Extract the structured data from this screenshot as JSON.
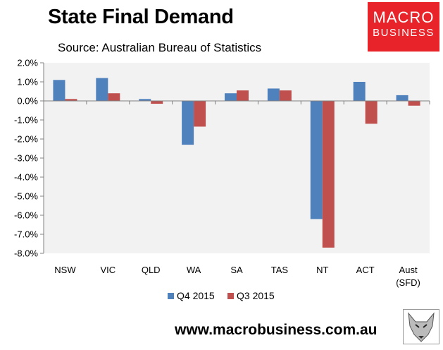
{
  "header": {
    "title": "State Final Demand",
    "subtitle": "Source: Australian Bureau of Statistics"
  },
  "logo": {
    "line1": "MACRO",
    "line2": "BUSINESS"
  },
  "footer": {
    "website": "www.macrobusiness.com.au"
  },
  "colors": {
    "series1": "#4f81bd",
    "series2": "#c0504d",
    "plot_bg": "#f2f2f2",
    "logo_bg": "#e8242a"
  },
  "chart_data": {
    "type": "bar",
    "title": "State Final Demand",
    "categories": [
      "NSW",
      "VIC",
      "QLD",
      "WA",
      "SA",
      "TAS",
      "NT",
      "ACT",
      "Aust\n(SFD)"
    ],
    "series": [
      {
        "name": "Q4 2015",
        "values": [
          1.1,
          1.2,
          0.1,
          -2.3,
          0.4,
          0.65,
          -6.2,
          1.0,
          0.3
        ]
      },
      {
        "name": "Q3 2015",
        "values": [
          0.1,
          0.4,
          -0.15,
          -1.35,
          0.55,
          0.55,
          -7.7,
          -1.2,
          -0.25
        ]
      }
    ],
    "ylim": [
      -8,
      2
    ],
    "yticks": [
      2,
      1,
      0,
      -1,
      -2,
      -3,
      -4,
      -5,
      -6,
      -7,
      -8
    ],
    "ytick_labels": [
      "2.0%",
      "1.0%",
      "0.0%",
      "-1.0%",
      "-2.0%",
      "-3.0%",
      "-4.0%",
      "-5.0%",
      "-6.0%",
      "-7.0%",
      "-8.0%"
    ],
    "legend_position": "bottom",
    "grid": false
  }
}
